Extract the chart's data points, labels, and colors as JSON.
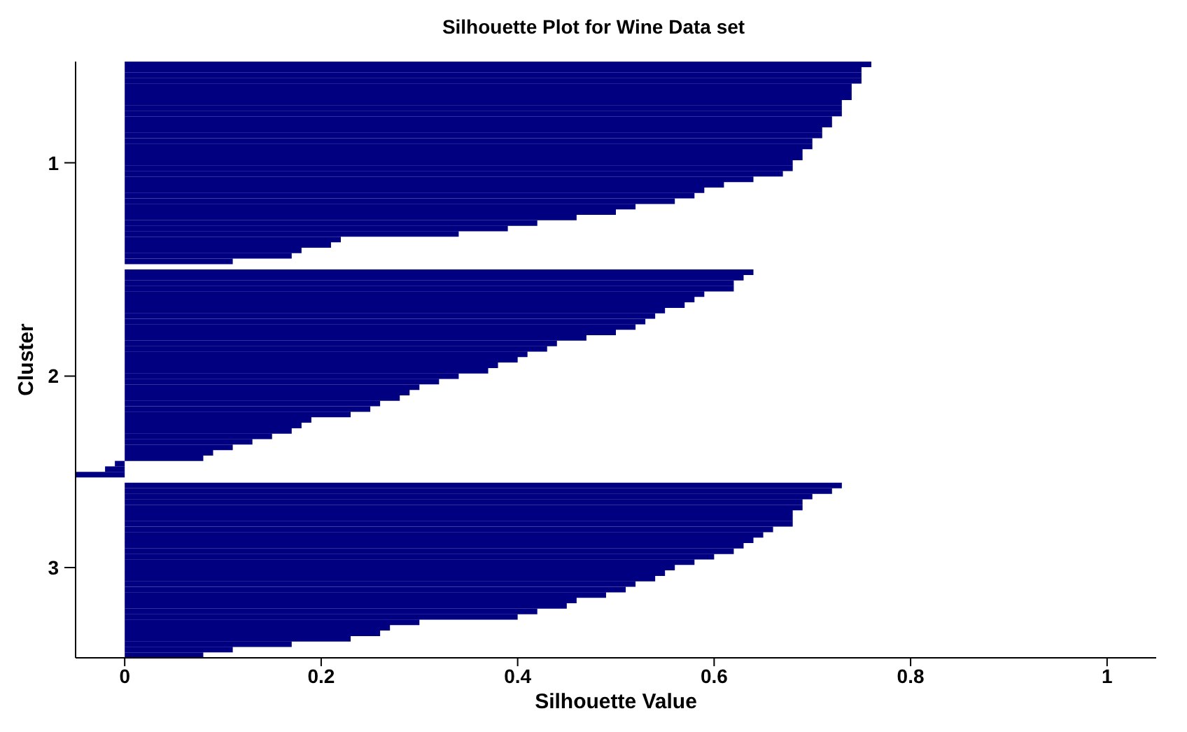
{
  "chart_data": {
    "type": "bar",
    "orientation": "horizontal",
    "title": "Silhouette Plot for Wine Data set",
    "xlabel": "Silhouette Value",
    "ylabel": "Cluster",
    "categories": [
      null,
      null,
      null,
      null,
      null,
      null,
      null,
      null,
      null,
      null,
      null,
      null,
      null,
      null,
      null,
      null,
      null,
      null,
      "1",
      null,
      null,
      null,
      null,
      null,
      null,
      null,
      null,
      null,
      null,
      null,
      null,
      null,
      null,
      null,
      null,
      null,
      null,
      null,
      null,
      null,
      null,
      null,
      null,
      null,
      null,
      null,
      null,
      null,
      null,
      null,
      null,
      null,
      null,
      null,
      null,
      null,
      null,
      "2",
      null,
      null,
      null,
      null,
      null,
      null,
      null,
      null,
      null,
      null,
      null,
      null,
      null,
      null,
      null,
      null,
      null,
      null,
      null,
      null,
      null,
      null,
      null,
      null,
      null,
      null,
      null,
      null,
      null,
      null,
      null,
      null,
      null,
      null,
      "3",
      null,
      null,
      null,
      null,
      null,
      null,
      null,
      null,
      null,
      null,
      null,
      null,
      null,
      null,
      null,
      null
    ],
    "values": [
      0.76,
      0.75,
      0.75,
      0.75,
      0.74,
      0.74,
      0.74,
      0.73,
      0.73,
      0.73,
      0.72,
      0.72,
      0.71,
      0.71,
      0.7,
      0.7,
      0.69,
      0.69,
      0.68,
      0.68,
      0.67,
      0.64,
      0.61,
      0.59,
      0.58,
      0.56,
      0.52,
      0.5,
      0.46,
      0.42,
      0.39,
      0.34,
      0.22,
      0.21,
      0.18,
      0.17,
      0.11,
      null,
      0.64,
      0.63,
      0.62,
      0.62,
      0.59,
      0.58,
      0.57,
      0.55,
      0.54,
      0.53,
      0.52,
      0.5,
      0.47,
      0.44,
      0.43,
      0.41,
      0.4,
      0.38,
      0.37,
      0.34,
      0.32,
      0.3,
      0.29,
      0.28,
      0.26,
      0.25,
      0.23,
      0.19,
      0.18,
      0.17,
      0.15,
      0.13,
      0.11,
      0.09,
      0.08,
      -0.01,
      -0.02,
      -0.05,
      null,
      0.73,
      0.72,
      0.7,
      0.69,
      0.69,
      0.68,
      0.68,
      0.68,
      0.66,
      0.65,
      0.64,
      0.63,
      0.62,
      0.6,
      0.58,
      0.56,
      0.55,
      0.54,
      0.52,
      0.51,
      0.49,
      0.46,
      0.45,
      0.42,
      0.4,
      0.3,
      0.27,
      0.26,
      0.23,
      0.17,
      0.11,
      0.08
    ],
    "color": "#000080",
    "xlim": [
      -0.05,
      1.05
    ],
    "xticks": [
      0,
      0.2,
      0.4,
      0.6,
      0.8,
      1
    ]
  }
}
